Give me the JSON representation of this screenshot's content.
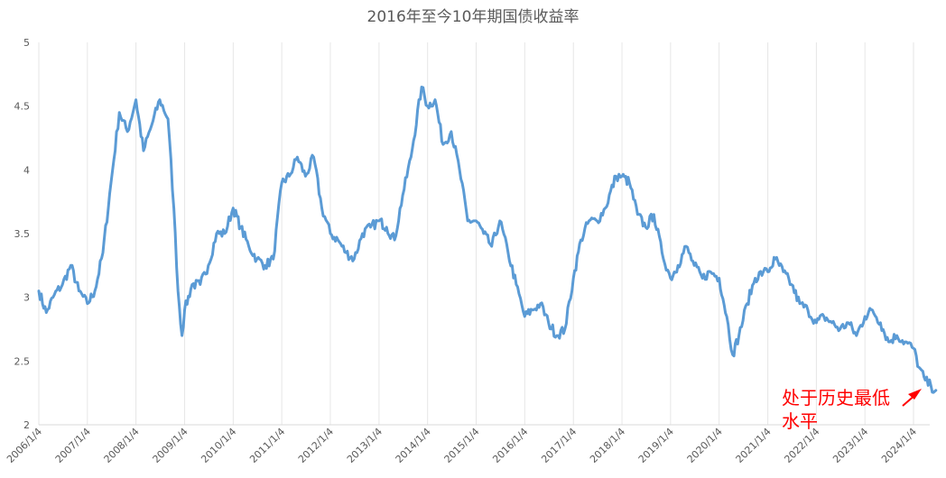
{
  "chart_data": {
    "type": "line",
    "title": "2016年至今10年期国债收益率",
    "xlabel": "",
    "ylabel": "",
    "ylim": [
      2,
      5
    ],
    "yticks": [
      "2",
      "2.5",
      "3",
      "3.5",
      "4",
      "4.5",
      "5"
    ],
    "xticks": [
      "2006/1/4",
      "2007/1/4",
      "2008/1/4",
      "2009/1/4",
      "2010/1/4",
      "2011/1/4",
      "2012/1/4",
      "2013/1/4",
      "2014/1/4",
      "2015/1/4",
      "2016/1/4",
      "2017/1/4",
      "2018/1/4",
      "2019/1/4",
      "2020/1/4",
      "2021/1/4",
      "2022/1/4",
      "2023/1/4",
      "2024/1/4"
    ],
    "grid": "vertical",
    "line_color": "#5b9bd5",
    "annotation": {
      "lines": [
        "处于历史最低",
        "水平"
      ],
      "color": "#ff0000"
    },
    "x": [
      "2006/1/4",
      "2006/3/1",
      "2006/5/1",
      "2006/7/1",
      "2006/9/1",
      "2006/11/1",
      "2007/1/4",
      "2007/3/1",
      "2007/5/1",
      "2007/7/1",
      "2007/9/1",
      "2007/11/1",
      "2008/1/4",
      "2008/3/1",
      "2008/5/1",
      "2008/7/1",
      "2008/9/1",
      "2008/10/15",
      "2008/11/15",
      "2008/12/15",
      "2009/1/4",
      "2009/3/1",
      "2009/5/1",
      "2009/7/1",
      "2009/9/1",
      "2009/11/1",
      "2010/1/4",
      "2010/3/1",
      "2010/5/1",
      "2010/7/1",
      "2010/9/1",
      "2010/11/1",
      "2011/1/4",
      "2011/3/1",
      "2011/5/1",
      "2011/7/1",
      "2011/9/1",
      "2011/11/1",
      "2012/1/4",
      "2012/3/1",
      "2012/5/1",
      "2012/7/1",
      "2012/9/1",
      "2012/11/1",
      "2013/1/4",
      "2013/3/1",
      "2013/5/1",
      "2013/7/1",
      "2013/9/1",
      "2013/11/20",
      "2014/1/4",
      "2014/3/1",
      "2014/5/1",
      "2014/7/1",
      "2014/9/1",
      "2014/11/1",
      "2015/1/4",
      "2015/3/1",
      "2015/5/1",
      "2015/7/1",
      "2015/9/1",
      "2015/11/1",
      "2016/1/4",
      "2016/3/1",
      "2016/5/1",
      "2016/7/1",
      "2016/9/1",
      "2016/11/1",
      "2017/1/4",
      "2017/3/1",
      "2017/5/1",
      "2017/7/1",
      "2017/9/1",
      "2017/11/20",
      "2018/1/4",
      "2018/3/1",
      "2018/5/1",
      "2018/7/1",
      "2018/9/1",
      "2018/11/1",
      "2019/1/4",
      "2019/3/1",
      "2019/5/1",
      "2019/7/1",
      "2019/9/1",
      "2019/11/1",
      "2020/1/4",
      "2020/3/1",
      "2020/4/15",
      "2020/6/1",
      "2020/8/1",
      "2020/10/1",
      "2020/12/1",
      "2021/1/4",
      "2021/3/1",
      "2021/5/1",
      "2021/7/1",
      "2021/9/1",
      "2021/11/1",
      "2022/1/4",
      "2022/3/1",
      "2022/5/1",
      "2022/7/1",
      "2022/9/1",
      "2022/11/1",
      "2023/1/4",
      "2023/3/1",
      "2023/5/1",
      "2023/7/1",
      "2023/9/1",
      "2023/11/1",
      "2024/1/4",
      "2024/2/15",
      "2024/4/1",
      "2024/5/15",
      "2024/6/20"
    ],
    "series": [
      {
        "values": [
          3.05,
          2.88,
          3.02,
          3.1,
          3.25,
          3.05,
          2.95,
          3.05,
          3.35,
          3.9,
          4.45,
          4.3,
          4.55,
          4.15,
          4.35,
          4.55,
          4.4,
          3.7,
          3.05,
          2.7,
          2.9,
          3.1,
          3.1,
          3.25,
          3.5,
          3.5,
          3.7,
          3.55,
          3.4,
          3.3,
          3.25,
          3.3,
          3.9,
          3.95,
          4.1,
          3.95,
          4.1,
          3.7,
          3.5,
          3.45,
          3.35,
          3.3,
          3.5,
          3.55,
          3.6,
          3.55,
          3.45,
          3.8,
          4.1,
          4.65,
          4.5,
          4.55,
          4.2,
          4.3,
          4.0,
          3.6,
          3.6,
          3.5,
          3.4,
          3.6,
          3.35,
          3.1,
          2.85,
          2.9,
          2.95,
          2.8,
          2.7,
          2.75,
          3.15,
          3.45,
          3.6,
          3.6,
          3.7,
          3.95,
          3.95,
          3.9,
          3.65,
          3.55,
          3.65,
          3.35,
          3.15,
          3.25,
          3.4,
          3.25,
          3.15,
          3.2,
          3.15,
          2.85,
          2.55,
          2.7,
          2.95,
          3.15,
          3.2,
          3.2,
          3.3,
          3.2,
          3.1,
          2.95,
          2.9,
          2.8,
          2.85,
          2.8,
          2.75,
          2.8,
          2.7,
          2.85,
          2.9,
          2.8,
          2.65,
          2.7,
          2.65,
          2.6,
          2.45,
          2.35,
          2.3,
          2.27
        ]
      }
    ]
  }
}
